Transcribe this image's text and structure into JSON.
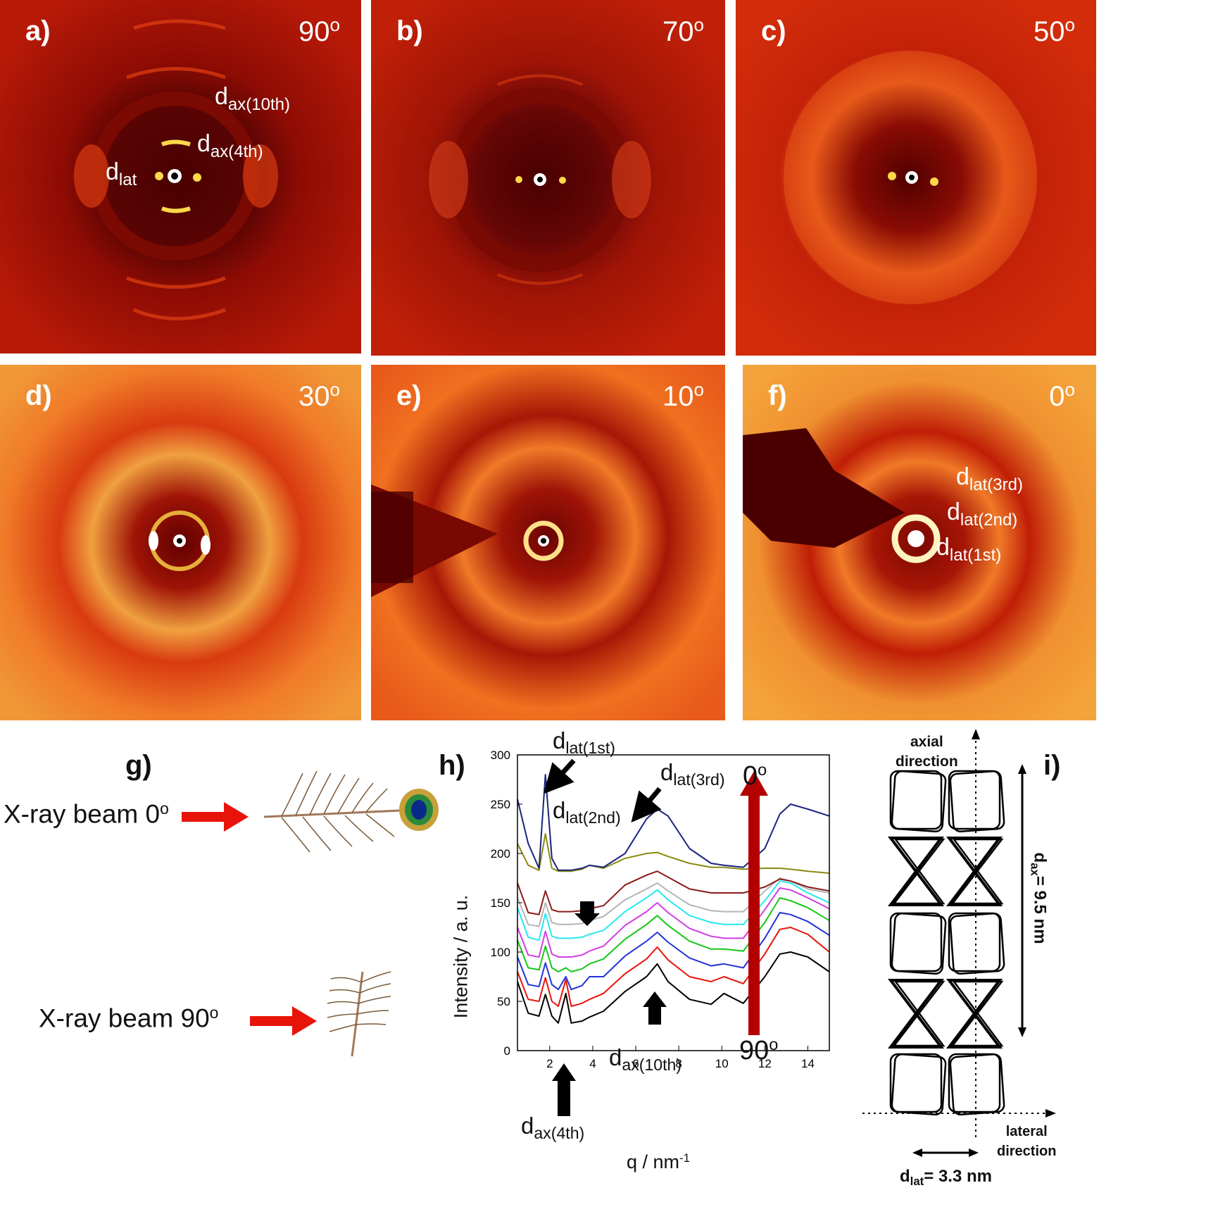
{
  "panels": [
    {
      "label": "a)",
      "angle": "90",
      "angle_sup": "o"
    },
    {
      "label": "b)",
      "angle": "70",
      "angle_sup": "o"
    },
    {
      "label": "c)",
      "angle": "50",
      "angle_sup": "o"
    },
    {
      "label": "d)",
      "angle": "30",
      "angle_sup": "o"
    },
    {
      "label": "e)",
      "angle": "10",
      "angle_sup": "o"
    },
    {
      "label": "f)",
      "angle": "0",
      "angle_sup": "o"
    }
  ],
  "panel_a": {
    "dax10_base": "d",
    "dax10_sub": "ax(10th)",
    "dax4_base": "d",
    "dax4_sub": "ax(4th)",
    "dlat_base": "d",
    "dlat_sub": "lat"
  },
  "panel_f": {
    "d3_base": "d",
    "d3_sub": "lat(3rd)",
    "d2_base": "d",
    "d2_sub": "lat(2nd)",
    "d1_base": "d",
    "d1_sub": "lat(1st)"
  },
  "panel_g": {
    "label": "g)",
    "beam0_text": "X-ray beam 0",
    "beam0_sup": "o",
    "beam90_text": "X-ray beam 90",
    "beam90_sup": "o"
  },
  "panel_h": {
    "label": "h)",
    "ann_dlat1_base": "d",
    "ann_dlat1_sub": "lat(1st)",
    "ann_dlat2_base": "d",
    "ann_dlat2_sub": "lat(2nd)",
    "ann_dlat3_base": "d",
    "ann_dlat3_sub": "lat(3rd)",
    "ann_dax4_base": "d",
    "ann_dax4_sub": "ax(4th)",
    "ann_dax10_base": "d",
    "ann_dax10_sub": "ax(10th)",
    "top_angle": "0",
    "top_angle_sup": "o",
    "bottom_angle": "90",
    "bottom_angle_sup": "o"
  },
  "panel_i": {
    "label": "i)",
    "axial_line1": "axial",
    "axial_line2": "direction",
    "lateral_line1": "lateral",
    "lateral_line2": "direction",
    "dax_base": "d",
    "dax_sub": "ax",
    "dax_value": "= 9.5 nm",
    "dlat_base": "d",
    "dlat_sub": "lat",
    "dlat_value": "= 3.3 nm"
  },
  "colors": {
    "diffraction_dark": "#5a0000",
    "diffraction_mid": "#b81a08",
    "diffraction_bright": "#ffd84a",
    "arrow_red": "#e8140a",
    "gradient_arrow": "#b30000"
  },
  "chart_data": {
    "type": "line",
    "title": "",
    "xlabel": "q / nm",
    "xlabel_sup": "-1",
    "ylabel": "Intensity / a. u.",
    "xlim": [
      0.5,
      15
    ],
    "ylim": [
      0,
      300
    ],
    "x_ticks": [
      "2",
      "4",
      "6",
      "8",
      "10",
      "12",
      "14"
    ],
    "y_ticks": [
      "0",
      "50",
      "100",
      "150",
      "200",
      "250",
      "300"
    ],
    "grid": false,
    "legend": "none",
    "x": [
      0.5,
      1.0,
      1.5,
      1.8,
      2.1,
      2.4,
      2.75,
      3.0,
      3.5,
      3.85,
      4.5,
      5.5,
      6.5,
      7.0,
      7.5,
      8.5,
      9.5,
      10.1,
      11.0,
      12.0,
      12.7,
      13.2,
      14.0,
      15.0
    ],
    "series": [
      {
        "color": "#000000",
        "values": [
          70,
          38,
          35,
          57,
          35,
          28,
          58,
          28,
          30,
          34,
          40,
          60,
          75,
          88,
          70,
          52,
          47,
          58,
          48,
          75,
          98,
          100,
          95,
          80
        ]
      },
      {
        "color": "#e8140a",
        "values": [
          80,
          52,
          50,
          74,
          50,
          45,
          72,
          45,
          48,
          52,
          58,
          78,
          93,
          105,
          92,
          75,
          70,
          75,
          68,
          98,
          123,
          125,
          118,
          100
        ]
      },
      {
        "color": "#2233d6",
        "values": [
          95,
          67,
          65,
          89,
          67,
          62,
          75,
          62,
          66,
          75,
          75,
          96,
          111,
          120,
          110,
          94,
          86,
          88,
          84,
          114,
          140,
          138,
          131,
          117
        ]
      },
      {
        "color": "#14c814",
        "values": [
          112,
          84,
          82,
          106,
          84,
          80,
          84,
          80,
          83,
          88,
          93,
          113,
          128,
          137,
          127,
          111,
          103,
          103,
          101,
          130,
          155,
          152,
          145,
          132
        ]
      },
      {
        "color": "#d23ce6",
        "values": [
          125,
          97,
          95,
          121,
          98,
          95,
          95,
          95,
          97,
          101,
          106,
          127,
          141,
          150,
          140,
          124,
          116,
          114,
          114,
          143,
          165,
          163,
          155,
          144
        ]
      },
      {
        "color": "#26e8f0",
        "values": [
          145,
          115,
          112,
          139,
          116,
          114,
          114,
          114,
          115,
          118,
          122,
          141,
          155,
          163,
          153,
          137,
          130,
          128,
          128,
          152,
          172,
          170,
          160,
          150
        ]
      },
      {
        "color": "#b4b4b4",
        "values": [
          155,
          128,
          126,
          150,
          130,
          128,
          128,
          128,
          129,
          132,
          136,
          153,
          164,
          170,
          162,
          148,
          142,
          141,
          141,
          162,
          175,
          172,
          164,
          160
        ]
      },
      {
        "color": "#8b1a1a",
        "values": [
          170,
          140,
          138,
          162,
          143,
          141,
          141,
          141,
          142,
          144,
          147,
          168,
          178,
          182,
          176,
          164,
          160,
          160,
          160,
          166,
          174,
          172,
          166,
          162
        ]
      },
      {
        "color": "#8a8a10",
        "values": [
          210,
          188,
          183,
          220,
          185,
          182,
          182,
          182,
          184,
          188,
          185,
          195,
          200,
          201,
          197,
          190,
          186,
          186,
          184,
          185,
          185,
          184,
          182,
          180
        ]
      },
      {
        "color": "#1a237e",
        "values": [
          255,
          210,
          185,
          280,
          195,
          183,
          183,
          183,
          185,
          188,
          186,
          200,
          235,
          245,
          238,
          205,
          190,
          188,
          186,
          205,
          240,
          250,
          245,
          238
        ]
      }
    ]
  }
}
